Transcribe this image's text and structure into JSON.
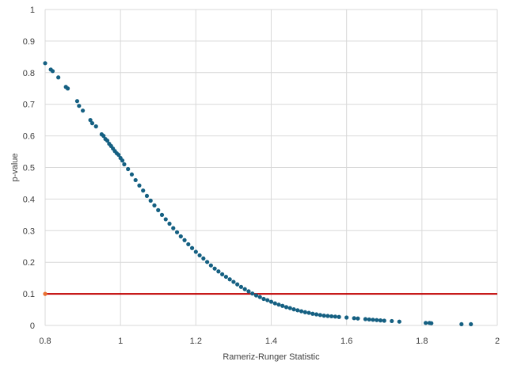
{
  "chart_data": {
    "type": "scatter",
    "title": "",
    "xlabel": "Rameriz-Runger Statistic",
    "ylabel": "p-value",
    "xlim": [
      0.8,
      2
    ],
    "ylim": [
      0,
      1
    ],
    "x_ticks": [
      "0.8",
      "1",
      "1.2",
      "1.4",
      "1.6",
      "1.8",
      "2"
    ],
    "y_ticks": [
      "0",
      "0.1",
      "0.2",
      "0.3",
      "0.4",
      "0.5",
      "0.6",
      "0.7",
      "0.8",
      "0.9",
      "1"
    ],
    "grid": true,
    "legend": "none",
    "series": [
      {
        "color": "#156082",
        "x": [
          0.8,
          0.815,
          0.82,
          0.835,
          0.855,
          0.86,
          0.885,
          0.89,
          0.9,
          0.92,
          0.925,
          0.935,
          0.95,
          0.955,
          0.96,
          0.965,
          0.97,
          0.975,
          0.98,
          0.985,
          0.99,
          0.995,
          1.0,
          1.005,
          1.01,
          1.02,
          1.03,
          1.04,
          1.05,
          1.06,
          1.07,
          1.08,
          1.09,
          1.1,
          1.11,
          1.12,
          1.13,
          1.14,
          1.15,
          1.16,
          1.17,
          1.18,
          1.19,
          1.2,
          1.21,
          1.22,
          1.23,
          1.24,
          1.25,
          1.26,
          1.27,
          1.28,
          1.29,
          1.3,
          1.31,
          1.32,
          1.33,
          1.34,
          1.35,
          1.36,
          1.37,
          1.38,
          1.39,
          1.4,
          1.41,
          1.42,
          1.43,
          1.44,
          1.45,
          1.46,
          1.47,
          1.48,
          1.49,
          1.5,
          1.51,
          1.52,
          1.53,
          1.54,
          1.55,
          1.56,
          1.57,
          1.58,
          1.6,
          1.62,
          1.63,
          1.65,
          1.66,
          1.67,
          1.68,
          1.69,
          1.7,
          1.72,
          1.74,
          1.81,
          1.82,
          1.825,
          1.905,
          1.93
        ],
        "y": [
          0.83,
          0.81,
          0.805,
          0.785,
          0.755,
          0.75,
          0.71,
          0.695,
          0.68,
          0.65,
          0.64,
          0.63,
          0.605,
          0.6,
          0.59,
          0.585,
          0.575,
          0.568,
          0.56,
          0.552,
          0.545,
          0.54,
          0.53,
          0.522,
          0.51,
          0.495,
          0.478,
          0.46,
          0.443,
          0.427,
          0.41,
          0.395,
          0.38,
          0.365,
          0.35,
          0.336,
          0.322,
          0.308,
          0.295,
          0.282,
          0.27,
          0.257,
          0.245,
          0.233,
          0.222,
          0.212,
          0.201,
          0.19,
          0.18,
          0.171,
          0.162,
          0.154,
          0.146,
          0.138,
          0.13,
          0.122,
          0.115,
          0.108,
          0.101,
          0.095,
          0.09,
          0.084,
          0.08,
          0.075,
          0.07,
          0.066,
          0.062,
          0.058,
          0.055,
          0.051,
          0.048,
          0.045,
          0.042,
          0.04,
          0.037,
          0.035,
          0.033,
          0.031,
          0.03,
          0.029,
          0.028,
          0.027,
          0.025,
          0.023,
          0.022,
          0.02,
          0.019,
          0.018,
          0.017,
          0.016,
          0.015,
          0.014,
          0.012,
          0.008,
          0.008,
          0.007,
          0.004,
          0.004
        ]
      },
      {
        "color": "#E97132",
        "x": [
          0.8
        ],
        "y": [
          0.1
        ]
      }
    ],
    "reference_line": {
      "y": 0.1,
      "color": "#C00000"
    },
    "colors": {
      "grid": "#D9D9D9",
      "tick_text": "#404040"
    }
  }
}
